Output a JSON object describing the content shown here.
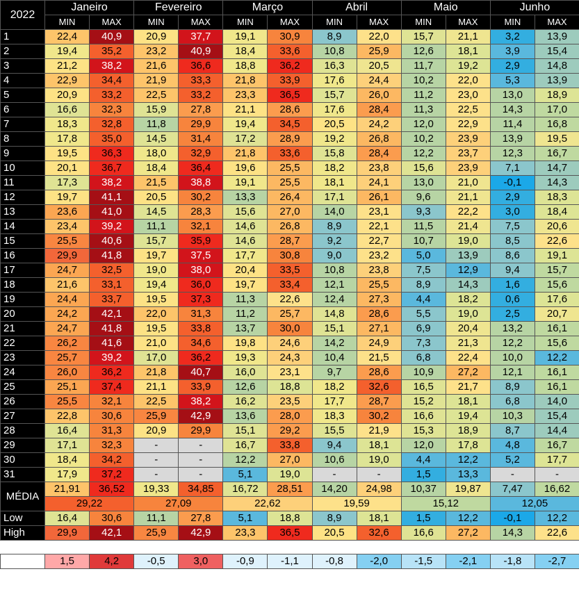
{
  "year": "2022",
  "months": [
    "Janeiro",
    "Fevereiro",
    "Março",
    "Abril",
    "Maio",
    "Junho"
  ],
  "min_label": "MIN",
  "max_label": "MAX",
  "days": [
    {
      "label": "1",
      "vals": [
        "22,4",
        "40,9",
        "20,9",
        "37,7",
        "19,1",
        "30,9",
        "8,9",
        "22,0",
        "15,7",
        "21,1",
        "3,2",
        "13,9"
      ]
    },
    {
      "label": "2",
      "vals": [
        "19,4",
        "35,2",
        "23,2",
        "40,9",
        "18,4",
        "33,6",
        "10,8",
        "25,9",
        "12,6",
        "18,1",
        "3,9",
        "15,4"
      ]
    },
    {
      "label": "3",
      "vals": [
        "21,2",
        "38,2",
        "21,6",
        "36,6",
        "18,8",
        "36,2",
        "16,3",
        "20,5",
        "11,7",
        "19,2",
        "2,9",
        "14,8"
      ]
    },
    {
      "label": "4",
      "vals": [
        "22,9",
        "34,4",
        "21,9",
        "33,3",
        "21,8",
        "33,9",
        "17,6",
        "24,4",
        "10,2",
        "22,0",
        "5,3",
        "13,9"
      ]
    },
    {
      "label": "5",
      "vals": [
        "20,9",
        "33,2",
        "22,5",
        "33,2",
        "23,3",
        "36,5",
        "15,7",
        "26,0",
        "11,2",
        "23,0",
        "13,0",
        "18,9"
      ]
    },
    {
      "label": "6",
      "vals": [
        "16,6",
        "32,3",
        "15,9",
        "27,8",
        "21,1",
        "28,6",
        "17,6",
        "28,4",
        "11,3",
        "22,5",
        "14,3",
        "17,0"
      ]
    },
    {
      "label": "7",
      "vals": [
        "18,3",
        "32,8",
        "11,8",
        "29,9",
        "19,4",
        "34,5",
        "20,5",
        "24,2",
        "12,0",
        "22,9",
        "11,4",
        "16,8"
      ]
    },
    {
      "label": "8",
      "vals": [
        "17,8",
        "35,0",
        "14,5",
        "31,4",
        "17,2",
        "28,9",
        "19,2",
        "26,8",
        "10,2",
        "23,9",
        "13,9",
        "19,5"
      ]
    },
    {
      "label": "9",
      "vals": [
        "19,5",
        "36,3",
        "18,0",
        "32,9",
        "21,8",
        "33,6",
        "15,8",
        "28,4",
        "12,2",
        "23,7",
        "12,3",
        "16,7"
      ]
    },
    {
      "label": "10",
      "vals": [
        "20,1",
        "36,7",
        "18,4",
        "36,4",
        "19,6",
        "25,5",
        "18,2",
        "23,8",
        "15,6",
        "23,9",
        "7,1",
        "14,7"
      ]
    },
    {
      "label": "11",
      "vals": [
        "17,3",
        "38,2",
        "21,5",
        "38,8",
        "19,1",
        "25,5",
        "18,1",
        "24,1",
        "13,0",
        "21,0",
        "-0,1",
        "14,3"
      ]
    },
    {
      "label": "12",
      "vals": [
        "19,7",
        "41,1",
        "20,5",
        "30,2",
        "13,3",
        "26,4",
        "17,1",
        "26,1",
        "9,6",
        "21,1",
        "2,9",
        "18,3"
      ]
    },
    {
      "label": "13",
      "vals": [
        "23,6",
        "41,0",
        "14,5",
        "28,3",
        "15,6",
        "27,0",
        "14,0",
        "23,1",
        "9,3",
        "22,2",
        "3,0",
        "18,4"
      ]
    },
    {
      "label": "14",
      "vals": [
        "23,4",
        "39,2",
        "11,1",
        "32,1",
        "14,6",
        "26,8",
        "8,9",
        "22,1",
        "11,5",
        "21,4",
        "7,5",
        "20,6"
      ]
    },
    {
      "label": "15",
      "vals": [
        "25,5",
        "40,6",
        "15,7",
        "35,9",
        "14,6",
        "28,7",
        "9,2",
        "22,7",
        "10,7",
        "19,0",
        "8,5",
        "22,6"
      ]
    },
    {
      "label": "16",
      "vals": [
        "29,9",
        "41,8",
        "19,7",
        "37,5",
        "17,7",
        "30,8",
        "9,0",
        "23,2",
        "5,0",
        "13,9",
        "8,6",
        "19,1"
      ]
    },
    {
      "label": "17",
      "vals": [
        "24,7",
        "32,5",
        "19,0",
        "38,0",
        "20,4",
        "33,5",
        "10,8",
        "23,8",
        "7,5",
        "12,9",
        "9,4",
        "15,7"
      ]
    },
    {
      "label": "18",
      "vals": [
        "21,6",
        "33,1",
        "19,4",
        "36,0",
        "19,7",
        "33,4",
        "12,1",
        "25,5",
        "8,9",
        "14,3",
        "1,6",
        "15,6"
      ]
    },
    {
      "label": "19",
      "vals": [
        "24,4",
        "33,7",
        "19,5",
        "37,3",
        "11,3",
        "22,6",
        "12,4",
        "27,3",
        "4,4",
        "18,2",
        "0,6",
        "17,6"
      ]
    },
    {
      "label": "20",
      "vals": [
        "24,2",
        "42,1",
        "22,0",
        "31,3",
        "11,2",
        "25,7",
        "14,8",
        "28,6",
        "5,5",
        "19,0",
        "2,5",
        "20,7"
      ]
    },
    {
      "label": "21",
      "vals": [
        "24,7",
        "41,8",
        "19,5",
        "33,8",
        "13,7",
        "30,0",
        "15,1",
        "27,1",
        "6,9",
        "20,4",
        "13,2",
        "16,1"
      ]
    },
    {
      "label": "22",
      "vals": [
        "26,2",
        "41,6",
        "21,0",
        "34,6",
        "19,8",
        "24,6",
        "14,2",
        "24,9",
        "7,3",
        "21,3",
        "12,2",
        "15,6"
      ]
    },
    {
      "label": "23",
      "vals": [
        "25,7",
        "39,2",
        "17,0",
        "36,2",
        "19,3",
        "24,3",
        "10,4",
        "21,5",
        "6,8",
        "22,4",
        "10,0",
        "12,2"
      ]
    },
    {
      "label": "24",
      "vals": [
        "26,0",
        "36,2",
        "21,8",
        "40,7",
        "16,0",
        "23,1",
        "9,7",
        "28,6",
        "10,9",
        "27,2",
        "12,1",
        "16,1"
      ]
    },
    {
      "label": "25",
      "vals": [
        "25,1",
        "37,4",
        "21,1",
        "33,9",
        "12,6",
        "18,8",
        "18,2",
        "32,6",
        "16,5",
        "21,7",
        "8,9",
        "16,1"
      ]
    },
    {
      "label": "26",
      "vals": [
        "25,5",
        "32,1",
        "22,5",
        "38,2",
        "16,2",
        "23,5",
        "17,7",
        "28,7",
        "15,2",
        "18,1",
        "6,8",
        "14,0"
      ]
    },
    {
      "label": "27",
      "vals": [
        "22,8",
        "30,6",
        "25,9",
        "42,9",
        "13,6",
        "28,0",
        "18,3",
        "30,2",
        "16,6",
        "19,4",
        "10,3",
        "15,4"
      ]
    },
    {
      "label": "28",
      "vals": [
        "16,4",
        "31,3",
        "20,9",
        "29,9",
        "15,1",
        "29,2",
        "15,5",
        "21,9",
        "15,3",
        "18,9",
        "8,7",
        "14,4"
      ]
    },
    {
      "label": "29",
      "vals": [
        "17,1",
        "32,3",
        "-",
        "-",
        "16,7",
        "33,8",
        "9,4",
        "18,1",
        "12,0",
        "17,8",
        "4,8",
        "16,7"
      ]
    },
    {
      "label": "30",
      "vals": [
        "18,4",
        "34,2",
        "-",
        "-",
        "12,2",
        "27,0",
        "10,6",
        "19,0",
        "4,4",
        "12,2",
        "5,2",
        "17,7"
      ]
    },
    {
      "label": "31",
      "vals": [
        "17,9",
        "37,2",
        "-",
        "-",
        "5,1",
        "19,0",
        "-",
        "-",
        "1,5",
        "13,3",
        "-",
        "-"
      ]
    }
  ],
  "media": {
    "label": "MÉDIA",
    "vals": [
      "21,91",
      "36,52",
      "19,33",
      "34,85",
      "16,72",
      "28,51",
      "14,20",
      "24,98",
      "10,37",
      "19,87",
      "7,47",
      "16,62"
    ],
    "overall": [
      "29,22",
      "27,09",
      "22,62",
      "19,59",
      "15,12",
      "12,05"
    ]
  },
  "low": {
    "label": "Low",
    "vals": [
      "16,4",
      "30,6",
      "11,1",
      "27,8",
      "5,1",
      "18,8",
      "8,9",
      "18,1",
      "1,5",
      "12,2",
      "-0,1",
      "12,2"
    ]
  },
  "high": {
    "label": "High",
    "vals": [
      "29,9",
      "42,1",
      "25,9",
      "42,9",
      "23,3",
      "36,5",
      "20,5",
      "32,6",
      "16,6",
      "27,2",
      "14,3",
      "22,6"
    ]
  },
  "diff": {
    "vals": [
      "1,5",
      "4,2",
      "-0,5",
      "3,0",
      "-0,9",
      "-1,1",
      "-0,8",
      "-2,0",
      "-1,5",
      "-2,1",
      "-1,8",
      "-2,7"
    ]
  },
  "colors": {
    "header_bg": "#000000",
    "header_text": "#ffffff",
    "missing": "#d9d9d9",
    "diff_pos_light": "#ffa8a8",
    "diff_pos_mid": "#ef6060",
    "diff_pos_strong": "#e03a3a",
    "diff_neg_light": "#dff2fc",
    "diff_neg_mid": "#b8e3f7",
    "diff_neg_strong": "#85d0f2"
  }
}
